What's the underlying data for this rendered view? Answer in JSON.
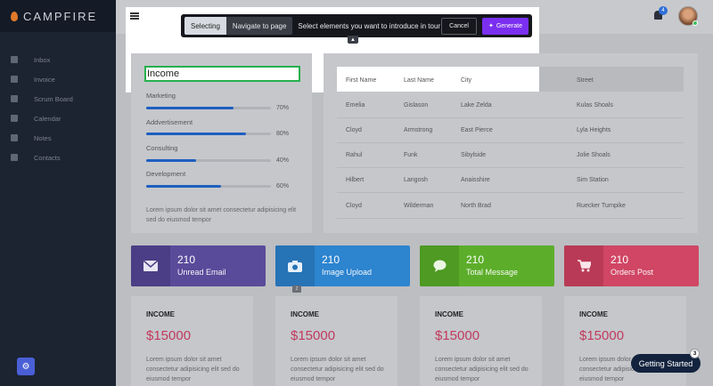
{
  "app": {
    "brand": "CAMPFIRE"
  },
  "sidebar": {
    "items": [
      {
        "label": "Inbox",
        "icon": "mail-icon"
      },
      {
        "label": "Invoice",
        "icon": "invoice-icon"
      },
      {
        "label": "Scrum Board",
        "icon": "checkbox-icon"
      },
      {
        "label": "Calendar",
        "icon": "calendar-icon"
      },
      {
        "label": "Notes",
        "icon": "notes-icon"
      },
      {
        "label": "Contacts",
        "icon": "contacts-icon"
      }
    ]
  },
  "header": {
    "notification_count": "4"
  },
  "tour_toolbar": {
    "mode_selecting": "Selecting",
    "mode_navigate": "Navigate to page",
    "instruction": "Select elements you want to introduce in tour",
    "cancel_label": "Cancel",
    "generate_label": "Generate"
  },
  "income_card": {
    "title": "Income",
    "progress": [
      {
        "label": "Marketing",
        "percent_text": "70%",
        "value": 70
      },
      {
        "label": "Addvertisement",
        "percent_text": "80%",
        "value": 80
      },
      {
        "label": "Consulting",
        "percent_text": "40%",
        "value": 40
      },
      {
        "label": "Development",
        "percent_text": "60%",
        "value": 60
      }
    ],
    "text": "Lorem ipsum dolor sit amet consectetur adipisicing elit sed do eiusmod tempor"
  },
  "table": {
    "headers": [
      "First Name",
      "Last Name",
      "City",
      "Street"
    ],
    "rows": [
      [
        "Emelia",
        "Gislason",
        "Lake Zelda",
        "Kulas Shoals"
      ],
      [
        "Cloyd",
        "Armstrong",
        "East Pierce",
        "Lyla Heights"
      ],
      [
        "Rahul",
        "Funk",
        "Sibylside",
        "Jolie Shoals"
      ],
      [
        "Hilbert",
        "Langosh",
        "Anaisshire",
        "Sim Station"
      ],
      [
        "Cloyd",
        "Wilderman",
        "North Brad",
        "Ruecker Turnpike"
      ]
    ]
  },
  "tiles": [
    {
      "number": "210",
      "label": "Unread Email",
      "color": "#5a4a9a",
      "icon_bg": "#4c3e86",
      "icon": "email-icon"
    },
    {
      "number": "210",
      "label": "Image Upload",
      "color": "#2d84cf",
      "icon_bg": "#2673b6",
      "icon": "camera-icon"
    },
    {
      "number": "210",
      "label": "Total Message",
      "color": "#5cae2a",
      "icon_bg": "#4e9a22",
      "icon": "chat-icon"
    },
    {
      "number": "210",
      "label": "Orders Post",
      "color": "#d04664",
      "icon_bg": "#b93a56",
      "icon": "cart-icon"
    }
  ],
  "mini_badge": "2",
  "income_cards": [
    {
      "title": "INCOME",
      "amount": "$15000",
      "text": "Lorem ipsum dolor sit amet consectetur adipisicing elit sed do eiusmod tempor"
    },
    {
      "title": "INCOME",
      "amount": "$15000",
      "text": "Lorem ipsum dolor sit amet consectetur adipisicing elit sed do eiusmod tempor"
    },
    {
      "title": "INCOME",
      "amount": "$15000",
      "text": "Lorem ipsum dolor sit amet consectetur adipisicing elit sed do eiusmod tempor"
    },
    {
      "title": "INCOME",
      "amount": "$15000",
      "text": "Lorem ipsum dolor sit amet consectetur adipisicing elit sed do eiusmod tempor"
    }
  ],
  "getting_started": {
    "label": "Getting Started",
    "badge": "3"
  }
}
